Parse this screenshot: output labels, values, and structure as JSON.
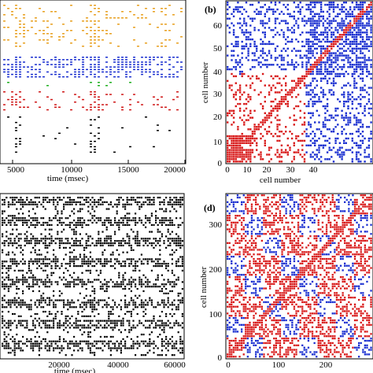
{
  "panels": {
    "a": {
      "xlabel": "time (msec)",
      "ticks_x": [
        "5000",
        "10000",
        "15000",
        "20000"
      ],
      "colors": [
        "#e8a020",
        "#1a2fd0",
        "#d01818",
        "#20b020",
        "#000000"
      ]
    },
    "b": {
      "label": "(b)",
      "xlabel": "cell number",
      "ylabel": "cell number",
      "ticks_x": [
        "0",
        "10",
        "20",
        "30",
        "40"
      ],
      "ticks_y": [
        "0",
        "10",
        "20",
        "30",
        "40",
        "50",
        "60"
      ],
      "colors": {
        "positive": "#d81818",
        "negative": "#1a2fd0"
      }
    },
    "c": {
      "xlabel": "time (msec)",
      "ticks_x": [
        "20000",
        "40000",
        "60000"
      ]
    },
    "d": {
      "label": "(d)",
      "ylabel": "cell number",
      "ticks_x": [
        "0",
        "100",
        "200"
      ],
      "ticks_y": [
        "0",
        "100",
        "200",
        "300"
      ]
    }
  }
}
